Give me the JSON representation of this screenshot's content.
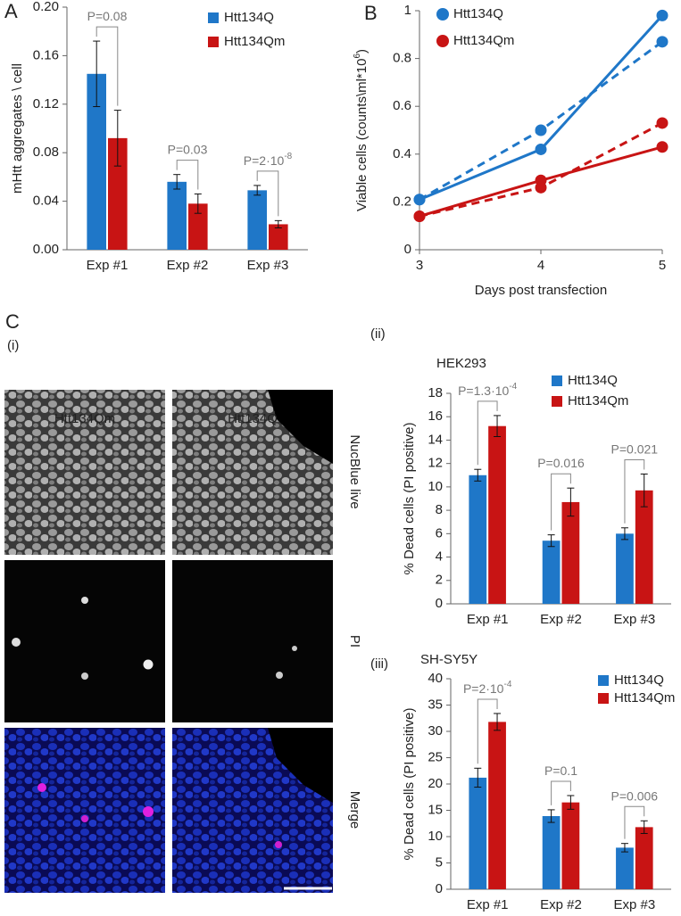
{
  "chart_data": [
    {
      "type": "bar",
      "panel_label": "A",
      "y_label": [
        "mHtt aggregates \\ cell"
      ],
      "categories": [
        "Exp #1",
        "Exp #2",
        "Exp #3"
      ],
      "series": [
        {
          "name": "Htt134Q",
          "color": "#1f77c8",
          "values": [
            0.145,
            0.056,
            0.049
          ],
          "errors": [
            0.027,
            0.006,
            0.004
          ]
        },
        {
          "name": "Htt134Qm",
          "color": "#c81414",
          "values": [
            0.092,
            0.038,
            0.021
          ],
          "errors": [
            0.023,
            0.008,
            0.003
          ]
        }
      ],
      "p_values": [
        [
          "P=0.08"
        ],
        [
          "P=0.03"
        ],
        [
          "P=2·10",
          {
            "sup": "-8"
          }
        ]
      ],
      "ylim": [
        0,
        0.2
      ],
      "yticks": [
        {
          "value": 0,
          "label": "0.00"
        },
        0.04,
        0.08,
        0.12,
        0.16,
        {
          "value": 0.2,
          "label": "0.20"
        }
      ]
    },
    {
      "type": "line",
      "panel_label": "B",
      "x_label": [
        "Days post transfection"
      ],
      "y_label": [
        "Viable cells (counts\\ml*10",
        {
          "sup": "6"
        },
        ")"
      ],
      "x": [
        3,
        4,
        5
      ],
      "xlim": [
        3,
        5
      ],
      "xticks": [
        3,
        4,
        5
      ],
      "ylim": [
        0,
        1
      ],
      "yticks": [
        0,
        0.2,
        0.4,
        0.6,
        0.8,
        1
      ],
      "series": [
        {
          "name": "Htt134Q",
          "color": "#1f77c8",
          "lines": [
            {
              "style": "solid",
              "values": [
                0.21,
                0.42,
                0.98
              ]
            },
            {
              "style": "dashed",
              "values": [
                0.21,
                0.5,
                0.87
              ]
            }
          ]
        },
        {
          "name": "Htt134Qm",
          "color": "#c81414",
          "lines": [
            {
              "style": "solid",
              "values": [
                0.14,
                0.29,
                0.43
              ]
            },
            {
              "style": "dashed",
              "values": [
                0.14,
                0.26,
                0.53
              ]
            }
          ]
        }
      ]
    },
    {
      "type": "bar",
      "panel_label": "(ii)",
      "title": "HEK293",
      "y_label": [
        "% Dead cells (PI positive)"
      ],
      "categories": [
        "Exp #1",
        "Exp #2",
        "Exp #3"
      ],
      "series": [
        {
          "name": "Htt134Q",
          "color": "#1f77c8",
          "values": [
            11.0,
            5.4,
            6.0
          ],
          "errors": [
            0.5,
            0.5,
            0.5
          ]
        },
        {
          "name": "Htt134Qm",
          "color": "#c81414",
          "values": [
            15.2,
            8.7,
            9.7
          ],
          "errors": [
            0.9,
            1.2,
            1.4
          ]
        }
      ],
      "p_values": [
        [
          "P=1.3·10",
          {
            "sup": "-4"
          }
        ],
        [
          "P=0.016"
        ],
        [
          "P=0.021"
        ]
      ],
      "ylim": [
        0,
        18
      ],
      "yticks": [
        0,
        2,
        4,
        6,
        8,
        10,
        12,
        14,
        16,
        18
      ]
    },
    {
      "type": "bar",
      "panel_label": "(iii)",
      "title": "SH-SY5Y",
      "y_label": [
        "% Dead cells (PI positive)"
      ],
      "categories": [
        "Exp #1",
        "Exp #2",
        "Exp #3"
      ],
      "series": [
        {
          "name": "Htt134Q",
          "color": "#1f77c8",
          "values": [
            21.2,
            13.9,
            7.9
          ],
          "errors": [
            1.8,
            1.2,
            0.8
          ]
        },
        {
          "name": "Htt134Qm",
          "color": "#c81414",
          "values": [
            31.8,
            16.5,
            11.8
          ],
          "errors": [
            1.6,
            1.3,
            1.2
          ]
        }
      ],
      "p_values": [
        [
          "P=2·10",
          {
            "sup": "-4"
          }
        ],
        [
          "P=0.1"
        ],
        [
          "P=0.006"
        ]
      ],
      "ylim": [
        0,
        40
      ],
      "yticks": [
        0,
        5,
        10,
        15,
        20,
        25,
        30,
        35,
        40
      ]
    }
  ],
  "image_panel": {
    "panel_label": "C",
    "sub_label": "(i)",
    "columns": [
      "Htt134Qm",
      "Htt134Q"
    ],
    "rows": [
      "NucBlue live",
      "PI",
      "Merge"
    ]
  }
}
